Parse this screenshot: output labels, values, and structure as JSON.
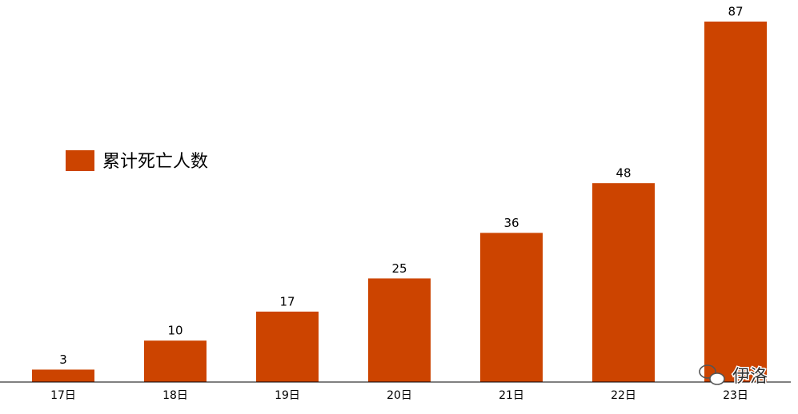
{
  "chart_data": {
    "type": "bar",
    "categories": [
      "17日",
      "18日",
      "19日",
      "20日",
      "21日",
      "22日",
      "23日"
    ],
    "series": [
      {
        "name": "累计死亡人数",
        "color": "#cc4400",
        "values": [
          3,
          10,
          17,
          25,
          36,
          48,
          87
        ]
      }
    ],
    "watermark": "伊洛"
  }
}
